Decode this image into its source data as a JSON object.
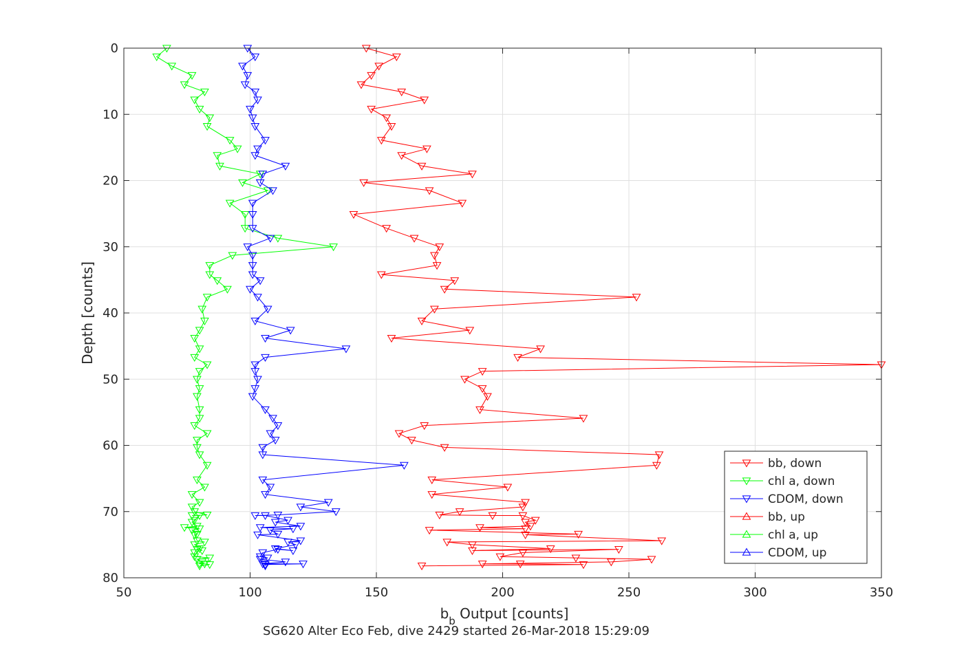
{
  "chart_data": {
    "type": "line",
    "title": "SG620 Alter Eco Feb, dive 2429 started 26-Mar-2018 15:29:09",
    "xlabel_main": "b",
    "xlabel_sub": "b",
    "xlabel_rest": " Output [counts]",
    "ylabel": "Depth [counts]",
    "xlim": [
      50,
      350
    ],
    "ylim": [
      0,
      80
    ],
    "y_reversed": true,
    "grid": true,
    "legend_position": "bottom-right",
    "x_ticks": [
      50,
      100,
      150,
      200,
      250,
      300,
      350
    ],
    "y_ticks": [
      0,
      10,
      20,
      30,
      40,
      50,
      60,
      70,
      80
    ],
    "series": [
      {
        "name": "bb, down",
        "color": "#ff0000",
        "marker": "triangle-down",
        "points": [
          [
            146,
            0
          ],
          [
            158,
            1.3
          ],
          [
            151,
            2.7
          ],
          [
            148,
            4.1
          ],
          [
            144,
            5.5
          ],
          [
            160,
            6.6
          ],
          [
            169,
            7.8
          ],
          [
            148,
            9.2
          ],
          [
            154,
            10.5
          ],
          [
            156,
            11.8
          ],
          [
            152,
            13.9
          ],
          [
            170,
            15.2
          ],
          [
            160,
            16.2
          ],
          [
            168,
            17.8
          ],
          [
            188,
            19.0
          ],
          [
            145,
            20.3
          ],
          [
            171,
            21.5
          ],
          [
            184,
            23.4
          ],
          [
            141,
            25.1
          ],
          [
            154,
            27.2
          ],
          [
            165,
            28.7
          ],
          [
            175,
            30.0
          ],
          [
            173,
            31.3
          ],
          [
            174,
            32.8
          ],
          [
            152,
            34.2
          ],
          [
            181,
            35.1
          ],
          [
            177,
            36.4
          ],
          [
            253,
            37.6
          ],
          [
            173,
            39.4
          ],
          [
            168,
            41.2
          ],
          [
            187,
            42.6
          ],
          [
            156,
            43.8
          ],
          [
            215,
            45.4
          ],
          [
            206,
            46.7
          ],
          [
            350,
            47.8
          ],
          [
            192,
            48.8
          ],
          [
            185,
            50.0
          ],
          [
            192,
            51.4
          ],
          [
            194,
            52.6
          ],
          [
            191,
            54.6
          ],
          [
            232,
            55.9
          ],
          [
            169,
            57.0
          ],
          [
            159,
            58.2
          ],
          [
            164,
            59.2
          ],
          [
            177,
            60.3
          ],
          [
            262,
            61.4
          ],
          [
            261,
            63.0
          ],
          [
            172,
            65.2
          ],
          [
            202,
            66.3
          ],
          [
            172,
            67.4
          ],
          [
            209,
            68.6
          ],
          [
            208,
            69.3
          ],
          [
            183,
            70.0
          ],
          [
            175,
            70.5
          ],
          [
            196,
            70.6
          ],
          [
            208,
            70.6
          ],
          [
            213,
            71.3
          ],
          [
            209,
            71.6
          ],
          [
            211,
            72.2
          ],
          [
            191,
            72.4
          ],
          [
            209,
            72.6
          ],
          [
            171,
            72.8
          ],
          [
            230,
            73.4
          ],
          [
            209,
            73.5
          ],
          [
            263,
            74.4
          ],
          [
            178,
            74.6
          ],
          [
            188,
            75.0
          ],
          [
            219,
            75.6
          ],
          [
            188,
            75.9
          ],
          [
            246,
            75.7
          ],
          [
            208,
            76.2
          ],
          [
            199,
            76.8
          ],
          [
            229,
            77.0
          ],
          [
            259,
            77.2
          ],
          [
            243,
            77.6
          ],
          [
            192,
            77.9
          ],
          [
            207,
            77.9
          ],
          [
            232,
            78.0
          ],
          [
            168,
            78.2
          ]
        ]
      },
      {
        "name": "chl a, down",
        "color": "#00ff00",
        "marker": "triangle-down",
        "points": [
          [
            67,
            0
          ],
          [
            63,
            1.3
          ],
          [
            69,
            2.7
          ],
          [
            77,
            4.1
          ],
          [
            74,
            5.5
          ],
          [
            82,
            6.6
          ],
          [
            78,
            7.8
          ],
          [
            80,
            9.2
          ],
          [
            84,
            10.5
          ],
          [
            83,
            11.8
          ],
          [
            92,
            13.9
          ],
          [
            95,
            15.2
          ],
          [
            87,
            16.2
          ],
          [
            88,
            17.8
          ],
          [
            104,
            19.0
          ],
          [
            97,
            20.3
          ],
          [
            107,
            21.5
          ],
          [
            92,
            23.4
          ],
          [
            98,
            25.1
          ],
          [
            98,
            27.2
          ],
          [
            111,
            28.7
          ],
          [
            133,
            30.0
          ],
          [
            93,
            31.3
          ],
          [
            84,
            32.8
          ],
          [
            84,
            34.2
          ],
          [
            87,
            35.1
          ],
          [
            91,
            36.4
          ],
          [
            83,
            37.6
          ],
          [
            81,
            39.4
          ],
          [
            82,
            41.2
          ],
          [
            80,
            42.6
          ],
          [
            78,
            43.8
          ],
          [
            80,
            45.4
          ],
          [
            78,
            46.7
          ],
          [
            83,
            47.8
          ],
          [
            80,
            48.8
          ],
          [
            79,
            50.0
          ],
          [
            80,
            51.4
          ],
          [
            79,
            52.6
          ],
          [
            80,
            54.6
          ],
          [
            80,
            55.9
          ],
          [
            78,
            57.0
          ],
          [
            83,
            58.2
          ],
          [
            79,
            59.2
          ],
          [
            79,
            60.3
          ],
          [
            80,
            61.4
          ],
          [
            83,
            63.0
          ],
          [
            79,
            65.2
          ],
          [
            82,
            66.3
          ],
          [
            77,
            67.4
          ],
          [
            80,
            68.6
          ],
          [
            77,
            69.3
          ],
          [
            78,
            70.0
          ],
          [
            83,
            70.5
          ],
          [
            77,
            70.6
          ],
          [
            80,
            70.6
          ],
          [
            78,
            71.3
          ],
          [
            77,
            71.6
          ],
          [
            79,
            72.2
          ],
          [
            74,
            72.4
          ],
          [
            80,
            72.6
          ],
          [
            77,
            72.8
          ],
          [
            79,
            73.4
          ],
          [
            78,
            73.5
          ],
          [
            79,
            74.4
          ],
          [
            82,
            74.6
          ],
          [
            78,
            75.0
          ],
          [
            80,
            75.6
          ],
          [
            81,
            75.9
          ],
          [
            79,
            75.7
          ],
          [
            78,
            76.2
          ],
          [
            78,
            76.8
          ],
          [
            84,
            77.0
          ],
          [
            79,
            77.2
          ],
          [
            81,
            77.6
          ],
          [
            80,
            77.9
          ],
          [
            82,
            77.9
          ],
          [
            84,
            78.0
          ],
          [
            80,
            78.2
          ]
        ]
      },
      {
        "name": "CDOM, down",
        "color": "#0000ff",
        "marker": "triangle-down",
        "points": [
          [
            99,
            0
          ],
          [
            102,
            1.3
          ],
          [
            97,
            2.7
          ],
          [
            99,
            4.1
          ],
          [
            98,
            5.5
          ],
          [
            102,
            6.6
          ],
          [
            103,
            7.8
          ],
          [
            100,
            9.2
          ],
          [
            101,
            10.5
          ],
          [
            102,
            11.8
          ],
          [
            106,
            13.9
          ],
          [
            103,
            15.2
          ],
          [
            102,
            16.2
          ],
          [
            114,
            17.8
          ],
          [
            105,
            19.0
          ],
          [
            104,
            20.3
          ],
          [
            109,
            21.5
          ],
          [
            101,
            23.4
          ],
          [
            101,
            25.1
          ],
          [
            101,
            27.2
          ],
          [
            108,
            28.7
          ],
          [
            99,
            30.0
          ],
          [
            101,
            31.3
          ],
          [
            101,
            32.8
          ],
          [
            101,
            34.2
          ],
          [
            104,
            35.1
          ],
          [
            100,
            36.4
          ],
          [
            103,
            37.6
          ],
          [
            107,
            39.4
          ],
          [
            102,
            41.2
          ],
          [
            116,
            42.6
          ],
          [
            106,
            43.8
          ],
          [
            138,
            45.4
          ],
          [
            106,
            46.7
          ],
          [
            102,
            47.8
          ],
          [
            102,
            48.8
          ],
          [
            103,
            50.0
          ],
          [
            102,
            51.4
          ],
          [
            101,
            52.6
          ],
          [
            106,
            54.6
          ],
          [
            109,
            55.9
          ],
          [
            111,
            57.0
          ],
          [
            108,
            58.2
          ],
          [
            110,
            59.2
          ],
          [
            105,
            60.3
          ],
          [
            105,
            61.4
          ],
          [
            161,
            63.0
          ],
          [
            105,
            65.2
          ],
          [
            108,
            66.3
          ],
          [
            106,
            67.4
          ],
          [
            131,
            68.6
          ],
          [
            120,
            69.3
          ],
          [
            134,
            70.0
          ],
          [
            111,
            70.5
          ],
          [
            102,
            70.6
          ],
          [
            106,
            70.6
          ],
          [
            115,
            71.3
          ],
          [
            110,
            71.6
          ],
          [
            120,
            72.2
          ],
          [
            104,
            72.4
          ],
          [
            117,
            72.6
          ],
          [
            108,
            72.8
          ],
          [
            111,
            73.4
          ],
          [
            103,
            73.5
          ],
          [
            120,
            74.4
          ],
          [
            115,
            74.6
          ],
          [
            118,
            75.0
          ],
          [
            110,
            75.6
          ],
          [
            117,
            75.9
          ],
          [
            111,
            75.7
          ],
          [
            105,
            76.2
          ],
          [
            104,
            76.8
          ],
          [
            107,
            77.0
          ],
          [
            104,
            77.2
          ],
          [
            114,
            77.6
          ],
          [
            105,
            77.9
          ],
          [
            121,
            77.9
          ],
          [
            106,
            78.0
          ],
          [
            106,
            78.2
          ]
        ]
      },
      {
        "name": "bb, up",
        "color": "#ff0000",
        "marker": "triangle-up",
        "points": []
      },
      {
        "name": "chl a, up",
        "color": "#00ff00",
        "marker": "triangle-up",
        "points": []
      },
      {
        "name": "CDOM, up",
        "color": "#0000ff",
        "marker": "triangle-up",
        "points": []
      }
    ]
  }
}
